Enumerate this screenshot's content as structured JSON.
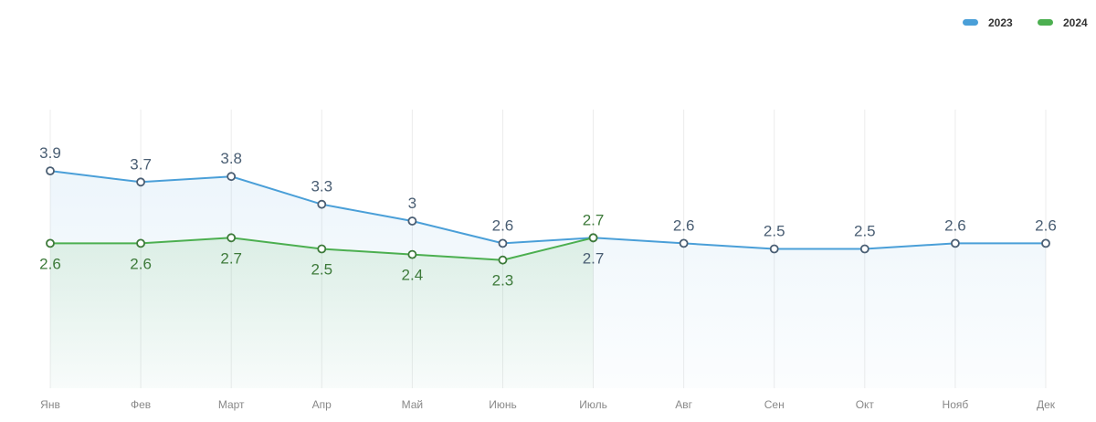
{
  "chart_data": {
    "type": "line",
    "categories": [
      "Янв",
      "Фев",
      "Март",
      "Апр",
      "Май",
      "Июнь",
      "Июль",
      "Авг",
      "Сен",
      "Окт",
      "Нояб",
      "Дек"
    ],
    "series": [
      {
        "name": "2023",
        "color": "#4a9fd8",
        "label_color": "#4a5e73",
        "values": [
          3.9,
          3.7,
          3.8,
          3.3,
          3,
          2.6,
          2.7,
          2.6,
          2.5,
          2.5,
          2.6,
          2.6
        ]
      },
      {
        "name": "2024",
        "color": "#4caf50",
        "label_color": "#3d7a3a",
        "values": [
          2.6,
          2.6,
          2.7,
          2.5,
          2.4,
          2.3,
          2.7,
          null,
          null,
          null,
          null,
          null
        ]
      }
    ],
    "ylim": [
      0,
      5
    ],
    "legend": "top-right",
    "grid": true
  }
}
